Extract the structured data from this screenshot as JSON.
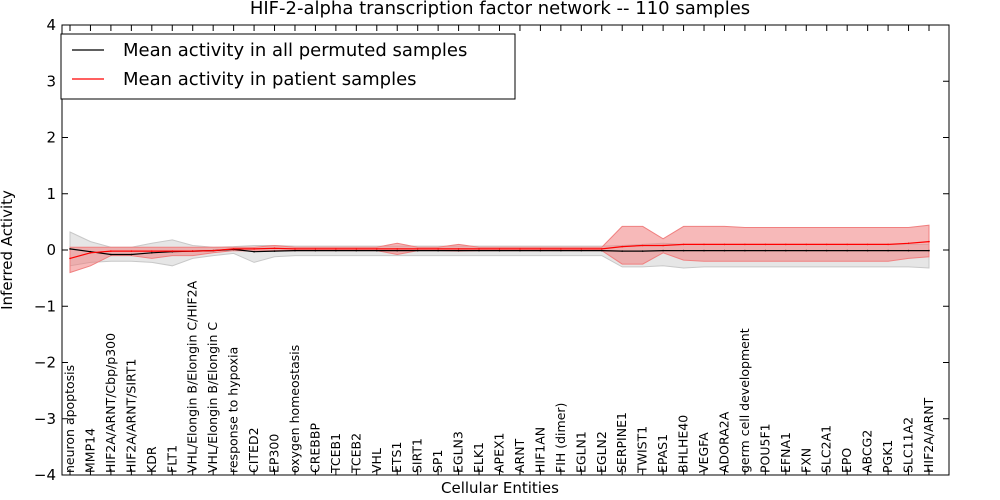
{
  "chart_data": {
    "type": "line",
    "title": "HIF-2-alpha transcription factor network -- 110 samples",
    "xlabel": "Cellular Entities",
    "ylabel": "Inferred Activity",
    "ylim": [
      -4,
      4
    ],
    "yticks": [
      -4,
      -3,
      -2,
      -1,
      0,
      1,
      2,
      3,
      4
    ],
    "ytick_labels": [
      "−4",
      "−3",
      "−2",
      "−1",
      "0",
      "1",
      "2",
      "3",
      "4"
    ],
    "legend_position": "top-left",
    "categories": [
      "neuron apoptosis",
      "MMP14",
      "HIF2A/ARNT/Cbp/p300",
      "HIF2A/ARNT/SIRT1",
      "KDR",
      "FLT1",
      "VHL/Elongin B/Elongin C/HIF2A",
      "VHL/Elongin B/Elongin C",
      "response to hypoxia",
      "CITED2",
      "EP300",
      "oxygen homeostasis",
      "CREBBP",
      "TCEB1",
      "TCEB2",
      "VHL",
      "ETS1",
      "SIRT1",
      "SP1",
      "EGLN3",
      "ELK1",
      "APEX1",
      "ARNT",
      "HIF1AN",
      "FIH (dimer)",
      "EGLN1",
      "EGLN2",
      "SERPINE1",
      "TWIST1",
      "EPAS1",
      "BHLHE40",
      "VEGFA",
      "ADORA2A",
      "germ cell development",
      "POU5F1",
      "EFNA1",
      "FXN",
      "SLC2A1",
      "EPO",
      "ABCG2",
      "PGK1",
      "SLC11A2",
      "HIF2A/ARNT"
    ],
    "series": [
      {
        "name": "Mean activity in all permuted samples",
        "color": "#000000",
        "band_color": "#c8c8c8",
        "values": [
          0.02,
          -0.03,
          -0.08,
          -0.08,
          -0.05,
          -0.03,
          -0.02,
          -0.01,
          0.01,
          -0.03,
          -0.02,
          -0.01,
          -0.01,
          -0.01,
          -0.01,
          -0.01,
          -0.01,
          -0.01,
          -0.01,
          -0.01,
          -0.01,
          -0.01,
          -0.01,
          -0.01,
          -0.01,
          -0.01,
          -0.01,
          -0.02,
          -0.02,
          -0.01,
          -0.01,
          -0.01,
          -0.01,
          -0.01,
          -0.01,
          -0.01,
          -0.01,
          -0.01,
          -0.01,
          -0.01,
          -0.01,
          -0.01,
          -0.01
        ],
        "band_upper": [
          0.32,
          0.15,
          0.05,
          0.05,
          0.12,
          0.18,
          0.08,
          0.05,
          0.06,
          0.08,
          0.08,
          0.07,
          0.07,
          0.07,
          0.07,
          0.07,
          0.07,
          0.07,
          0.07,
          0.07,
          0.07,
          0.07,
          0.07,
          0.07,
          0.07,
          0.07,
          0.07,
          0.08,
          0.1,
          0.12,
          0.1,
          0.1,
          0.1,
          0.1,
          0.1,
          0.1,
          0.1,
          0.1,
          0.1,
          0.1,
          0.1,
          0.1,
          0.1
        ],
        "band_lower": [
          -0.28,
          -0.22,
          -0.2,
          -0.2,
          -0.22,
          -0.28,
          -0.15,
          -0.1,
          -0.06,
          -0.22,
          -0.12,
          -0.1,
          -0.1,
          -0.1,
          -0.1,
          -0.1,
          -0.1,
          -0.1,
          -0.1,
          -0.1,
          -0.1,
          -0.1,
          -0.1,
          -0.1,
          -0.1,
          -0.1,
          -0.1,
          -0.3,
          -0.3,
          -0.28,
          -0.32,
          -0.3,
          -0.3,
          -0.3,
          -0.3,
          -0.3,
          -0.3,
          -0.3,
          -0.3,
          -0.3,
          -0.3,
          -0.3,
          -0.32
        ]
      },
      {
        "name": "Mean activity in patient samples",
        "color": "#ff0000",
        "band_color": "#f08080",
        "values": [
          -0.15,
          -0.05,
          -0.02,
          -0.02,
          -0.02,
          -0.02,
          -0.02,
          -0.01,
          0.02,
          0.02,
          0.03,
          0.02,
          0.02,
          0.02,
          0.02,
          0.02,
          0.02,
          0.02,
          0.02,
          0.02,
          0.02,
          0.02,
          0.02,
          0.02,
          0.02,
          0.02,
          0.02,
          0.06,
          0.08,
          0.08,
          0.1,
          0.1,
          0.1,
          0.1,
          0.1,
          0.1,
          0.1,
          0.1,
          0.1,
          0.1,
          0.1,
          0.12,
          0.15
        ],
        "band_upper": [
          0.05,
          0.05,
          0.05,
          0.05,
          0.05,
          0.05,
          0.05,
          0.05,
          0.05,
          0.05,
          0.08,
          0.05,
          0.05,
          0.05,
          0.05,
          0.05,
          0.12,
          0.05,
          0.05,
          0.1,
          0.05,
          0.05,
          0.05,
          0.05,
          0.05,
          0.05,
          0.05,
          0.42,
          0.42,
          0.2,
          0.42,
          0.42,
          0.42,
          0.4,
          0.4,
          0.4,
          0.4,
          0.4,
          0.4,
          0.4,
          0.4,
          0.4,
          0.44
        ],
        "band_lower": [
          -0.4,
          -0.28,
          -0.1,
          -0.1,
          -0.15,
          -0.1,
          -0.1,
          -0.05,
          -0.01,
          -0.02,
          -0.01,
          -0.01,
          -0.01,
          -0.01,
          -0.01,
          -0.01,
          -0.08,
          -0.01,
          -0.01,
          -0.02,
          -0.01,
          -0.01,
          -0.01,
          -0.01,
          -0.01,
          -0.01,
          -0.01,
          -0.25,
          -0.25,
          -0.05,
          -0.18,
          -0.2,
          -0.2,
          -0.2,
          -0.2,
          -0.2,
          -0.2,
          -0.2,
          -0.2,
          -0.2,
          -0.2,
          -0.15,
          -0.12
        ]
      }
    ]
  }
}
